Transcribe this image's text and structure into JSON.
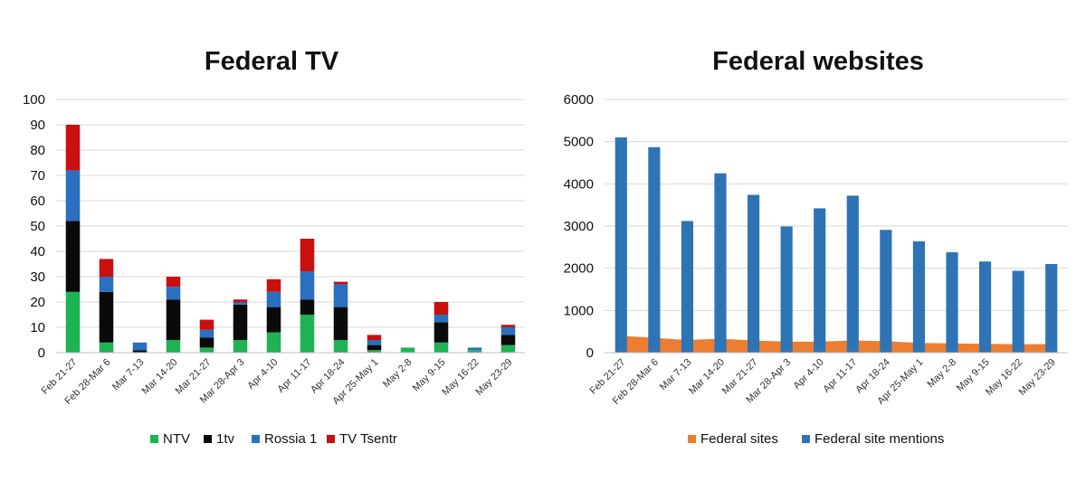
{
  "colors": {
    "ntv": "#1fb254",
    "onetv": "#0a0a0a",
    "rossia1": "#2a6fc0",
    "tvtsentr": "#c8100f",
    "federal_sites": "#ed7d31",
    "federal_mentions": "#2e74b5",
    "grid": "#d9d9d9"
  },
  "chart_data": [
    {
      "type": "bar",
      "stacked": true,
      "title": "Federal TV",
      "xlabel": "",
      "ylabel": "",
      "ylim": [
        0,
        100
      ],
      "yticks": [
        0,
        10,
        20,
        30,
        40,
        50,
        60,
        70,
        80,
        90,
        100
      ],
      "grid": true,
      "legend_position": "bottom",
      "categories": [
        "Feb 21-27",
        "Feb 28-Mar 6",
        "Mar 7-13",
        "Mar 14-20",
        "Mar 21-27",
        "Mar 28-Apr 3",
        "Apr 4-10",
        "Apr 11-17",
        "Apr 18-24",
        "Apr 25-May 1",
        "May 2-8",
        "May 9-15",
        "May 16-22",
        "May 23-29"
      ],
      "series": [
        {
          "name": "NTV",
          "color": "#1fb254",
          "values": [
            24,
            4,
            0,
            5,
            2,
            5,
            8,
            15,
            5,
            1,
            2,
            4,
            1,
            3
          ]
        },
        {
          "name": "1tv",
          "color": "#0a0a0a",
          "values": [
            28,
            20,
            1,
            16,
            4,
            14,
            10,
            6,
            13,
            2,
            0,
            8,
            0,
            4
          ]
        },
        {
          "name": "Rossia 1",
          "color": "#2a6fc0",
          "values": [
            20,
            6,
            3,
            5,
            3,
            1,
            6,
            11,
            9,
            2,
            0,
            3,
            1,
            3
          ]
        },
        {
          "name": "TV Tsentr",
          "color": "#c8100f",
          "values": [
            18,
            7,
            0,
            4,
            4,
            1,
            5,
            13,
            1,
            2,
            0,
            5,
            0,
            1
          ]
        }
      ]
    },
    {
      "type": "area_bar_combo",
      "title": "Federal websites",
      "xlabel": "",
      "ylabel": "",
      "ylim": [
        0,
        6000
      ],
      "yticks": [
        0,
        1000,
        2000,
        3000,
        4000,
        5000,
        6000
      ],
      "grid": true,
      "legend_position": "bottom",
      "categories": [
        "Feb 21-27",
        "Feb 28-Mar 6",
        "Mar 7-13",
        "Mar 14-20",
        "Mar 21-27",
        "Mar 28-Apr 3",
        "Apr 4-10",
        "Apr 11-17",
        "Apr 18-24",
        "Apr 25-May 1",
        "May 2-8",
        "May 9-15",
        "May 16-22",
        "May 23-29"
      ],
      "series": [
        {
          "name": "Federal sites",
          "type": "area",
          "color": "#ed7d31",
          "values": [
            400,
            350,
            300,
            330,
            290,
            260,
            260,
            290,
            270,
            230,
            220,
            210,
            200,
            200
          ]
        },
        {
          "name": "Federal site mentions",
          "type": "bar",
          "color": "#2e74b5",
          "values": [
            5100,
            4870,
            3120,
            4250,
            3740,
            2990,
            3420,
            3720,
            2910,
            2640,
            2380,
            2160,
            1940,
            2100
          ]
        }
      ]
    }
  ]
}
